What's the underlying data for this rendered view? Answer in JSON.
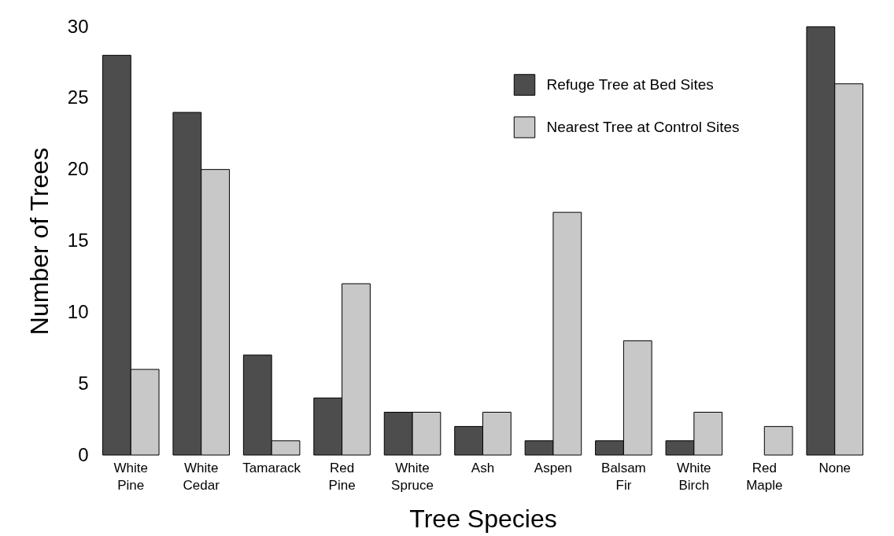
{
  "chart_data": {
    "type": "bar",
    "xlabel": "Tree Species",
    "ylabel": "Number of Trees",
    "categories": [
      "White Pine",
      "White Cedar",
      "Tamarack",
      "Red Pine",
      "White Spruce",
      "Ash",
      "Aspen",
      "Balsam Fir",
      "White Birch",
      "Red Maple",
      "None"
    ],
    "series": [
      {
        "name": "Refuge Tree at Bed Sites",
        "color": "#4d4d4d",
        "values": [
          28,
          24,
          7,
          4,
          3,
          2,
          1,
          1,
          1,
          0,
          30
        ]
      },
      {
        "name": "Nearest Tree at Control Sites",
        "color": "#c8c8c8",
        "values": [
          6,
          20,
          1,
          12,
          3,
          3,
          17,
          8,
          3,
          2,
          26
        ]
      }
    ],
    "ylim": [
      0,
      30
    ],
    "yticks": [
      0,
      5,
      10,
      15,
      20,
      25,
      30
    ],
    "grid": false,
    "legend": "top right"
  }
}
